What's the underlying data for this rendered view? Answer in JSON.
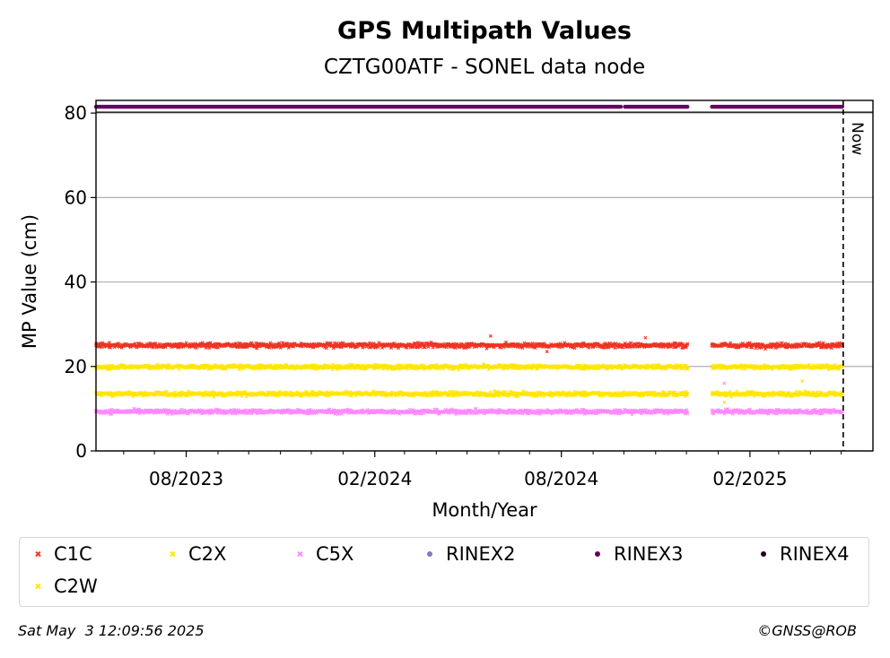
{
  "chart_data": {
    "type": "scatter",
    "title": "GPS Multipath Values",
    "subtitle": "CZTG00ATF - SONEL data node",
    "xlabel": "Month/Year",
    "ylabel": "MP Value (cm)",
    "xlim": [
      "2023-05-05",
      "2025-06-01"
    ],
    "ylim": [
      0,
      83
    ],
    "yticks": [
      0,
      20,
      40,
      60,
      80
    ],
    "xticks": [
      {
        "date": "2023-08-01",
        "label": "08/2023"
      },
      {
        "date": "2024-02-01",
        "label": "02/2024"
      },
      {
        "date": "2024-08-01",
        "label": "08/2024"
      },
      {
        "date": "2025-02-01",
        "label": "02/2025"
      }
    ],
    "x_minor_ticks": [
      "2023-06-01",
      "2023-07-01",
      "2023-09-01",
      "2023-10-01",
      "2023-11-01",
      "2023-12-01",
      "2024-01-01",
      "2024-03-01",
      "2024-04-01",
      "2024-05-01",
      "2024-06-01",
      "2024-07-01",
      "2024-09-01",
      "2024-10-01",
      "2024-11-01",
      "2024-12-01",
      "2025-01-01",
      "2025-03-01",
      "2025-04-01",
      "2025-05-01"
    ],
    "grid": "horizontal",
    "now_line": {
      "date": "2025-05-03",
      "label": "Now"
    },
    "data_start": "2023-05-05",
    "data_end": "2025-05-02",
    "gaps": [
      {
        "from": "2024-12-03",
        "to": "2024-12-25"
      }
    ],
    "rinex_gaps": [
      {
        "from": "2024-09-29",
        "to": "2024-10-01"
      },
      {
        "from": "2024-12-03",
        "to": "2024-12-25"
      }
    ],
    "series": [
      {
        "name": "C1C",
        "marker": "x",
        "color": "#ee3322",
        "mean": 25.0,
        "spread": 0.4,
        "outliers": [
          {
            "date": "2024-05-24",
            "value": 27.2
          },
          {
            "date": "2024-07-18",
            "value": 23.5
          },
          {
            "date": "2024-10-22",
            "value": 26.8
          }
        ]
      },
      {
        "name": "C2X",
        "marker": "x",
        "color": "#ffe600",
        "mean": 19.9,
        "spread": 0.35,
        "outliers": [
          {
            "date": "2025-03-24",
            "value": 16.5
          }
        ]
      },
      {
        "name": "C5X",
        "marker": "x",
        "color": "#ff88ff",
        "mean": 9.3,
        "spread": 0.35,
        "outliers": [
          {
            "date": "2025-01-07",
            "value": 16.0
          }
        ]
      },
      {
        "name": "RINEX2",
        "marker": "o",
        "color": "#8877bb",
        "points": []
      },
      {
        "name": "RINEX3",
        "marker": "o",
        "color": "#66005f",
        "constant": 81.5
      },
      {
        "name": "RINEX4",
        "marker": "o",
        "color": "#220022",
        "points": []
      },
      {
        "name": "C2W",
        "marker": "x",
        "color": "#ffe600",
        "mean": 13.5,
        "spread": 0.35,
        "outliers": [
          {
            "date": "2025-01-07",
            "value": 11.5
          }
        ]
      }
    ]
  },
  "footer": {
    "timestamp": "Sat May  3 12:09:56 2025",
    "credit": "©GNSS@ROB"
  }
}
